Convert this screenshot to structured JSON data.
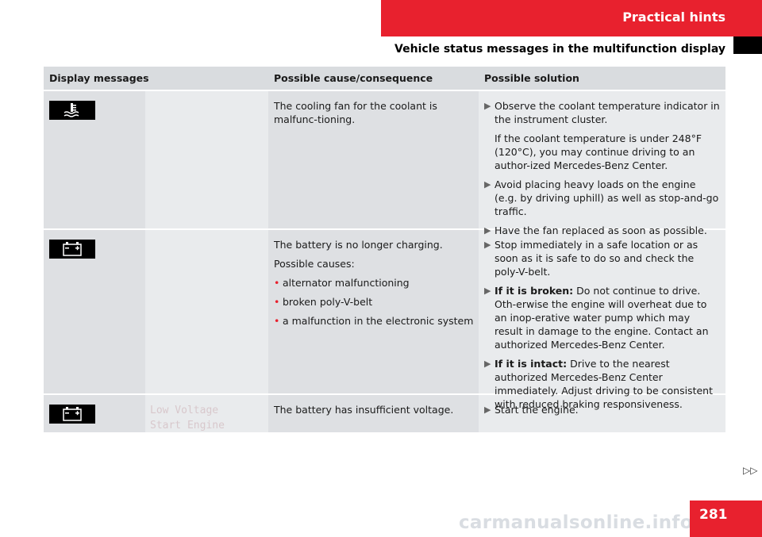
{
  "header": {
    "section": "Practical hints",
    "subtitle": "Vehicle status messages in the multifunction display"
  },
  "table": {
    "columns": [
      "Display messages",
      "Possible cause/consequence",
      "Possible solution"
    ],
    "rows": [
      {
        "icon": "coolant-temperature-icon",
        "message": "",
        "cause": [
          "The cooling fan for the coolant is malfunc-tioning."
        ],
        "solution": [
          {
            "text": "Observe the coolant temperature indicator in the instrument cluster.",
            "extra": "If the coolant temperature is under 248°F (120°C), you may continue driving to an author-ized Mercedes-Benz Center."
          },
          {
            "text": "Avoid placing heavy loads on the engine (e.g. by driving uphill) as well as stop-and-go traffic."
          },
          {
            "text": "Have the fan replaced as soon as possible."
          }
        ]
      },
      {
        "icon": "battery-icon",
        "message": "",
        "cause_lines": [
          "The battery is no longer charging.",
          "Possible causes:"
        ],
        "cause_bullets": [
          "alternator malfunctioning",
          "broken poly-V-belt",
          "a malfunction in the electronic system"
        ],
        "solution": [
          {
            "bold": "",
            "text": "Stop immediately in a safe location or as soon as it is safe to do so and check the poly-V-belt."
          },
          {
            "bold": "If it is broken:",
            "text": " Do not continue to drive. Oth-erwise the engine will overheat due to an inop-erative water pump which may result in damage to the engine. Contact an authorized Mercedes-Benz Center."
          },
          {
            "bold": "If it is intact:",
            "text": " Drive to the nearest authorized Mercedes-Benz Center immediately. Adjust driving to be consistent with reduced braking responsiveness."
          }
        ]
      },
      {
        "icon": "battery-icon",
        "message_lines": [
          "Low Voltage",
          "Start Engine"
        ],
        "cause": [
          "The battery has insufficient voltage."
        ],
        "solution": [
          {
            "text": "Start the engine."
          }
        ]
      }
    ]
  },
  "continue_marker": "▷▷",
  "page_number": "281",
  "watermark": "carmanualsonline.info"
}
